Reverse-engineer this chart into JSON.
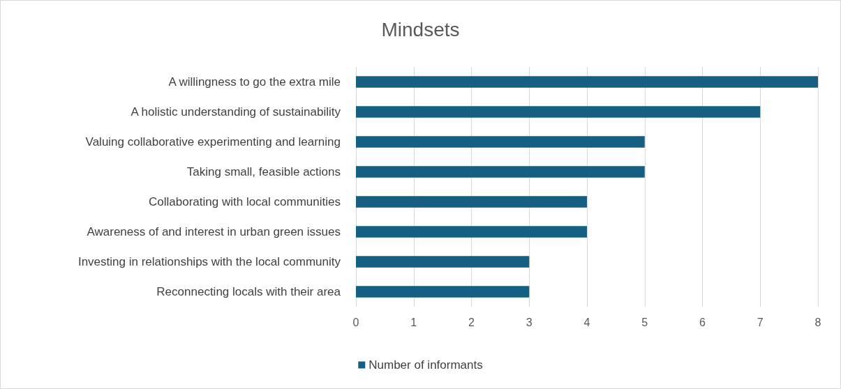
{
  "chart_data": {
    "type": "bar",
    "orientation": "horizontal",
    "title": "Mindsets",
    "categories": [
      "A willingness to go the extra mile",
      "A holistic understanding of sustainability",
      "Valuing collaborative experimenting and learning",
      "Taking small, feasible actions",
      "Collaborating with local communities",
      "Awareness of and interest in urban green issues",
      "Investing in relationships with the local community",
      "Reconnecting locals with their area"
    ],
    "series": [
      {
        "name": "Number of informants",
        "color": "#156082",
        "values": [
          8,
          7,
          5,
          5,
          4,
          4,
          3,
          3
        ]
      }
    ],
    "xlim": [
      0,
      8
    ],
    "xticks": [
      0,
      1,
      2,
      3,
      4,
      5,
      6,
      7,
      8
    ],
    "grid": "x",
    "legend": "bottom"
  }
}
